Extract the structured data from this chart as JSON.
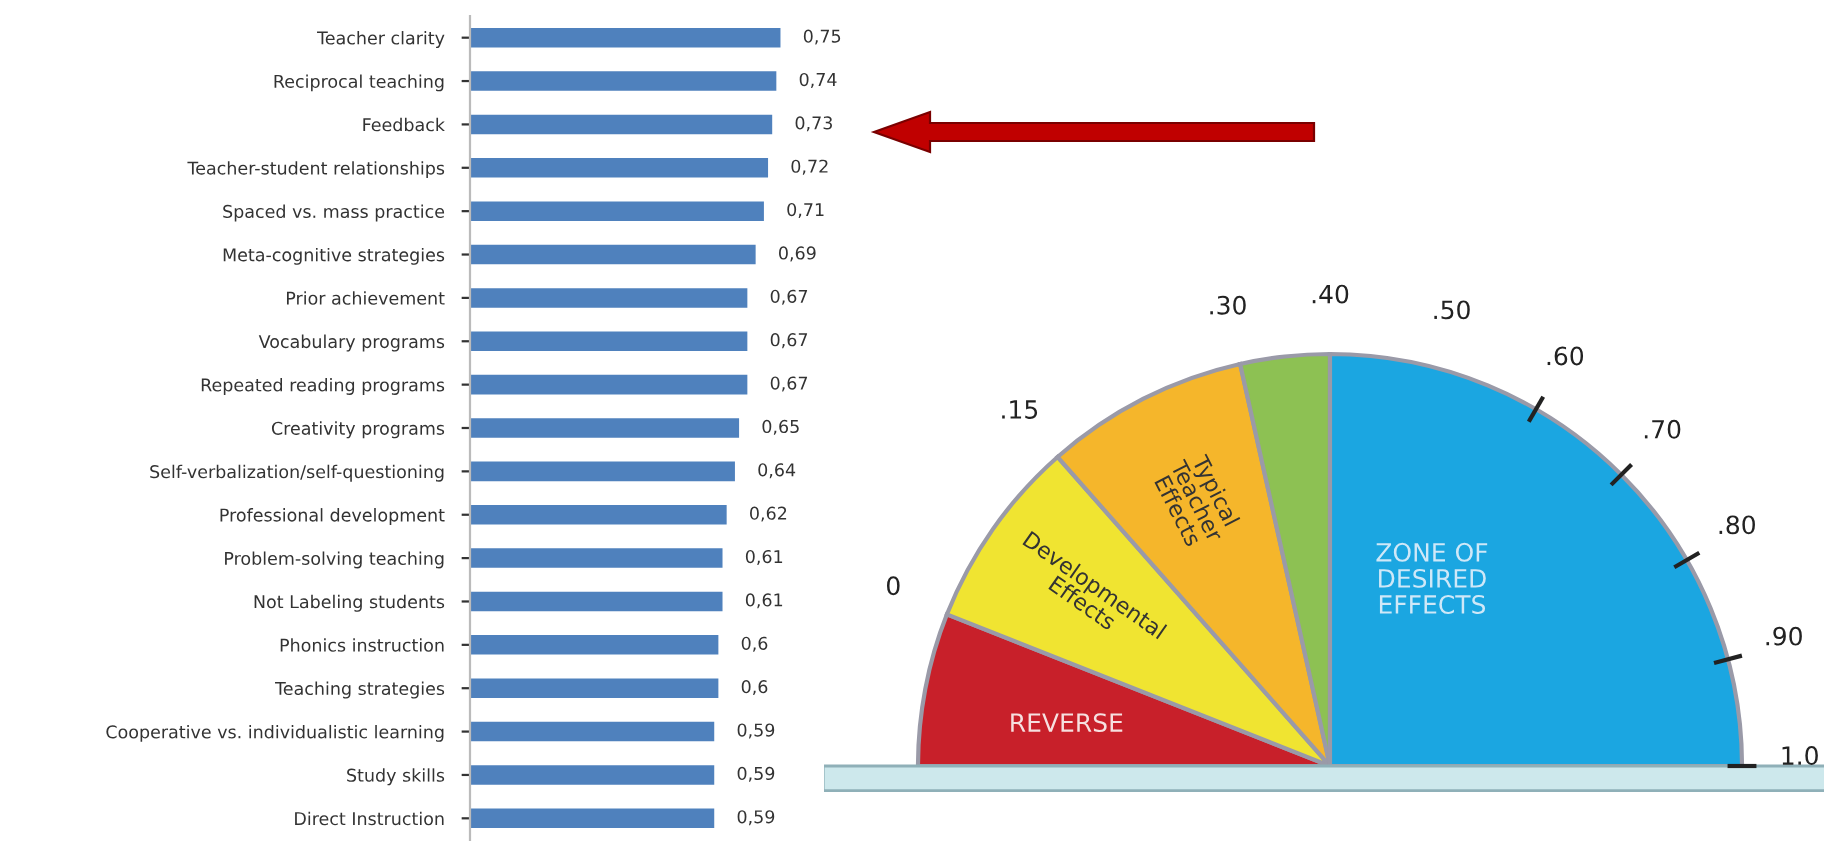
{
  "chart_data": [
    {
      "type": "bar",
      "orientation": "horizontal",
      "categories": [
        "Teacher clarity",
        "Reciprocal teaching",
        "Feedback",
        "Teacher-student relationships",
        "Spaced vs. mass practice",
        "Meta-cognitive strategies",
        "Prior achievement",
        "Vocabulary programs",
        "Repeated reading programs",
        "Creativity programs",
        "Self-verbalization/self-questioning",
        "Professional development",
        "Problem-solving teaching",
        "Not Labeling students",
        "Phonics instruction",
        "Teaching strategies",
        "Cooperative vs. individualistic learning",
        "Study skills",
        "Direct Instruction"
      ],
      "values": [
        0.75,
        0.74,
        0.73,
        0.72,
        0.71,
        0.69,
        0.67,
        0.67,
        0.67,
        0.65,
        0.64,
        0.62,
        0.61,
        0.61,
        0.6,
        0.6,
        0.59,
        0.59,
        0.59
      ],
      "value_labels": [
        "0,75",
        "0,74",
        "0,73",
        "0,72",
        "0,71",
        "0,69",
        "0,67",
        "0,67",
        "0,67",
        "0,65",
        "0,64",
        "0,62",
        "0,61",
        "0,61",
        "0,6",
        "0,6",
        "0,59",
        "0,59",
        "0,59"
      ],
      "color": "#4f81bd",
      "tick_labels": "y",
      "grid": false,
      "legend": false
    },
    {
      "type": "pie",
      "categories": [
        "REVERSE",
        "Developmental\nEffects",
        "Typical\nTeacher\nEffects",
        null,
        "ZONE OF\nDESIRED\nEFFECTS"
      ],
      "values": [
        12,
        15,
        16,
        7,
        50
      ],
      "colors": [
        "#c8202a",
        "#f0e431",
        "#f5b62b",
        "#8dc153",
        "#1ba6e1"
      ],
      "annotations": [
        "0",
        ".15",
        ".30",
        ".40",
        ".50",
        ".60",
        ".70",
        ".80",
        ".90",
        "1.0"
      ],
      "legend": false
    }
  ]
}
